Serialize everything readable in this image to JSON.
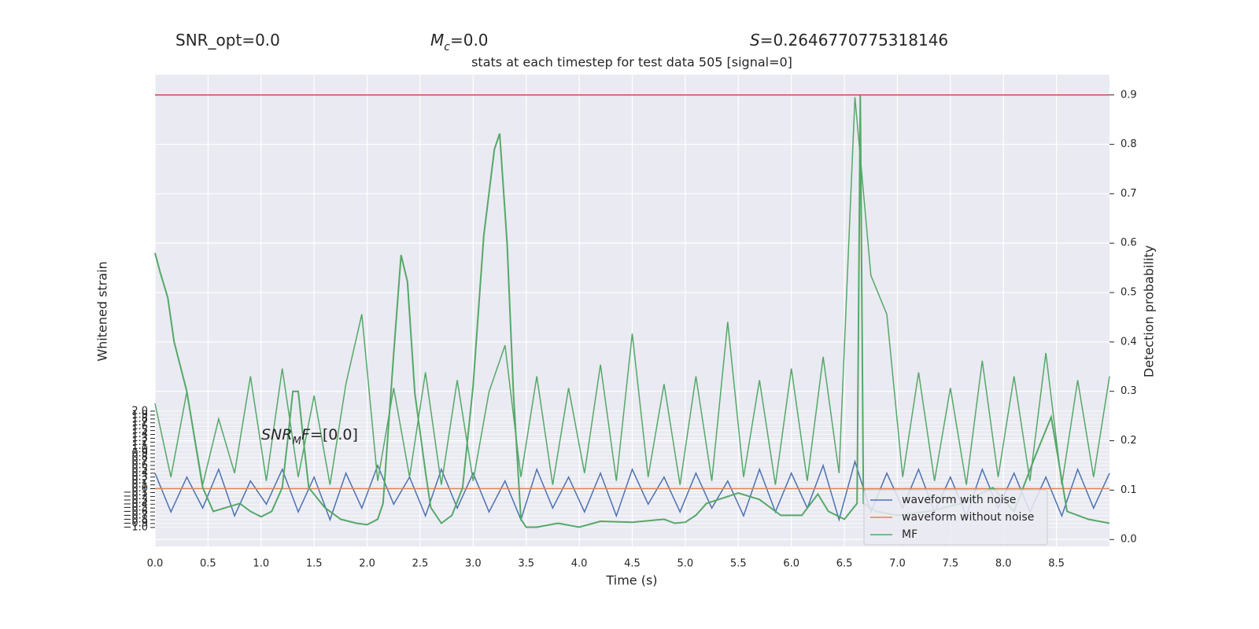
{
  "chart_data": {
    "type": "line",
    "title": "stats at each timestep for test data 505 [signal=0]",
    "annotations": [
      {
        "parts": [
          {
            "text": "SNR_opt=0.0"
          }
        ]
      },
      {
        "parts": [
          {
            "text": "M",
            "italic": true
          },
          {
            "text": "c",
            "italic": true,
            "sub": true
          },
          {
            "text": "=0.0"
          }
        ]
      },
      {
        "parts": [
          {
            "text": "S",
            "italic": true
          },
          {
            "text": "=0.2646770775318146"
          }
        ]
      },
      {
        "parts": [
          {
            "text": "SNR",
            "italic": true
          },
          {
            "text": "M",
            "italic": true,
            "sub": true
          },
          {
            "text": "F",
            "italic": true
          },
          {
            "text": "=[0.0]"
          }
        ]
      }
    ],
    "xlabel": "Time (s)",
    "ylabel": "Whitened strain",
    "y2label": "Detection probability",
    "xlim": [
      0,
      9
    ],
    "ylim": [
      -1.49,
      10.68
    ],
    "y2lim": [
      -0.014,
      0.941
    ],
    "grid": true,
    "legend": "lower right",
    "xticks": [
      {
        "value": 0,
        "label": "0.0"
      },
      {
        "value": 0.5,
        "label": "0.5"
      },
      {
        "value": 1,
        "label": "1.0"
      },
      {
        "value": 1.5,
        "label": "1.5"
      },
      {
        "value": 2,
        "label": "2.0"
      },
      {
        "value": 2.5,
        "label": "2.5"
      },
      {
        "value": 3,
        "label": "3.0"
      },
      {
        "value": 3.5,
        "label": "3.5"
      },
      {
        "value": 4,
        "label": "4.0"
      },
      {
        "value": 4.5,
        "label": "4.5"
      },
      {
        "value": 5,
        "label": "5.0"
      },
      {
        "value": 5.5,
        "label": "5.5"
      },
      {
        "value": 6,
        "label": "6.0"
      },
      {
        "value": 6.5,
        "label": "6.5"
      },
      {
        "value": 7,
        "label": "7.0"
      },
      {
        "value": 7.5,
        "label": "7.5"
      },
      {
        "value": 8,
        "label": "8.0"
      },
      {
        "value": 8.5,
        "label": "8.5"
      }
    ],
    "yticks": [
      {
        "value": -1,
        "label": "−1.0"
      },
      {
        "value": -0.9,
        "label": "−0.9"
      },
      {
        "value": -0.8,
        "label": "−0.8"
      },
      {
        "value": -0.7,
        "label": "−0.7"
      },
      {
        "value": -0.6,
        "label": "−0.6"
      },
      {
        "value": -0.5,
        "label": "−0.5"
      },
      {
        "value": -0.4,
        "label": "−0.4"
      },
      {
        "value": -0.3,
        "label": "−0.3"
      },
      {
        "value": -0.2,
        "label": "−0.2"
      },
      {
        "value": -0.1,
        "label": "−0.1"
      },
      {
        "value": 0,
        "label": "0.0"
      },
      {
        "value": 0.1,
        "label": "0.1"
      },
      {
        "value": 0.2,
        "label": "0.2"
      },
      {
        "value": 0.3,
        "label": "0.3"
      },
      {
        "value": 0.4,
        "label": "0.4"
      },
      {
        "value": 0.5,
        "label": "0.5"
      },
      {
        "value": 0.6,
        "label": "0.6"
      },
      {
        "value": 0.7,
        "label": "0.7"
      },
      {
        "value": 0.8,
        "label": "0.8"
      },
      {
        "value": 0.9,
        "label": "0.9"
      },
      {
        "value": 1,
        "label": "1.0"
      },
      {
        "value": 1.1,
        "label": "1.1"
      },
      {
        "value": 1.2,
        "label": "1.2"
      },
      {
        "value": 1.3,
        "label": "1.3"
      },
      {
        "value": 1.4,
        "label": "1.4"
      },
      {
        "value": 1.5,
        "label": "1.5"
      },
      {
        "value": 1.6,
        "label": "1.6"
      },
      {
        "value": 1.7,
        "label": "1.7"
      },
      {
        "value": 1.8,
        "label": "1.8"
      },
      {
        "value": 1.9,
        "label": "1.9"
      },
      {
        "value": 2,
        "label": "2.0"
      }
    ],
    "y2ticks": [
      {
        "value": 0,
        "label": "0.0"
      },
      {
        "value": 0.1,
        "label": "0.1"
      },
      {
        "value": 0.2,
        "label": "0.2"
      },
      {
        "value": 0.3,
        "label": "0.3"
      },
      {
        "value": 0.4,
        "label": "0.4"
      },
      {
        "value": 0.5,
        "label": "0.5"
      },
      {
        "value": 0.6,
        "label": "0.6"
      },
      {
        "value": 0.7,
        "label": "0.7"
      },
      {
        "value": 0.8,
        "label": "0.8"
      },
      {
        "value": 0.9,
        "label": "0.9"
      }
    ],
    "x": [
      0,
      0.15,
      0.3,
      0.45,
      0.6,
      0.75,
      0.9,
      1.05,
      1.2,
      1.35,
      1.5,
      1.65,
      1.8,
      1.95,
      2.1,
      2.25,
      2.4,
      2.55,
      2.7,
      2.85,
      3,
      3.15,
      3.3,
      3.45,
      3.6,
      3.75,
      3.9,
      4.05,
      4.2,
      4.35,
      4.5,
      4.65,
      4.8,
      4.95,
      5.1,
      5.25,
      5.4,
      5.55,
      5.7,
      5.85,
      6,
      6.15,
      6.3,
      6.45,
      6.6,
      6.75,
      6.9,
      7.05,
      7.2,
      7.35,
      7.5,
      7.65,
      7.8,
      7.95,
      8.1,
      8.25,
      8.4,
      8.55,
      8.7,
      8.85,
      9
    ],
    "series": [
      {
        "name": "waveform with noise",
        "color": "#4c72b0",
        "axis": "y",
        "values": [
          0.4,
          -0.6,
          0.3,
          -0.5,
          0.5,
          -0.7,
          0.2,
          -0.4,
          0.5,
          -0.6,
          0.3,
          -0.8,
          0.4,
          -0.5,
          0.6,
          -0.4,
          0.3,
          -0.7,
          0.5,
          -0.5,
          0.4,
          -0.6,
          0.2,
          -0.8,
          0.5,
          -0.5,
          0.3,
          -0.6,
          0.4,
          -0.7,
          0.5,
          -0.4,
          0.3,
          -0.6,
          0.4,
          -0.5,
          0.2,
          -0.7,
          0.5,
          -0.6,
          0.4,
          -0.5,
          0.6,
          -0.8,
          0.7,
          -0.6,
          0.4,
          -0.5,
          0.5,
          -0.6,
          0.3,
          -0.7,
          0.5,
          -0.5,
          0.4,
          -0.6,
          0.3,
          -0.7,
          0.5,
          -0.5,
          0.4
        ]
      },
      {
        "name": "waveform without noise",
        "color": "#dd8452",
        "axis": "y",
        "values": [
          0,
          0,
          0,
          0,
          0,
          0,
          0,
          0,
          0,
          0,
          0,
          0,
          0,
          0,
          0,
          0,
          0,
          0,
          0,
          0,
          0,
          0,
          0,
          0,
          0,
          0,
          0,
          0,
          0,
          0,
          0,
          0,
          0,
          0,
          0,
          0,
          0,
          0,
          0,
          0,
          0,
          0,
          0,
          0,
          0,
          0,
          0,
          0,
          0,
          0,
          0,
          0,
          0,
          0,
          0,
          0,
          0,
          0,
          0,
          0,
          0
        ]
      },
      {
        "name": "MF",
        "color": "#55a868",
        "axis": "y",
        "values": [
          2.2,
          0.3,
          2.5,
          0.1,
          1.8,
          0.4,
          2.9,
          0.2,
          3.1,
          0.3,
          2.4,
          0.1,
          2.7,
          4.5,
          0.2,
          2.6,
          0.3,
          3.0,
          0.1,
          2.8,
          0.2,
          2.5,
          3.7,
          0.3,
          2.9,
          0.1,
          2.6,
          0.4,
          3.2,
          0.2,
          4.0,
          0.3,
          2.7,
          0.1,
          2.9,
          0.2,
          4.3,
          0.3,
          2.8,
          0.1,
          3.1,
          0.2,
          3.4,
          0.4,
          10.1,
          5.5,
          4.5,
          0.3,
          3.0,
          0.2,
          2.6,
          0.1,
          3.3,
          0.3,
          2.9,
          0.2,
          3.5,
          0.1,
          2.8,
          0.3,
          2.9
        ]
      }
    ],
    "probability": {
      "color": "#55a868",
      "axis": "y2",
      "x": [
        0,
        0.05,
        0.12,
        0.18,
        0.3,
        0.45,
        0.55,
        0.8,
        0.9,
        1.0,
        1.1,
        1.2,
        1.25,
        1.3,
        1.35,
        1.4,
        1.45,
        1.6,
        1.75,
        1.9,
        2.0,
        2.1,
        2.15,
        2.25,
        2.32,
        2.38,
        2.45,
        2.55,
        2.6,
        2.7,
        2.8,
        2.9,
        3.0,
        3.1,
        3.2,
        3.25,
        3.32,
        3.38,
        3.45,
        3.5,
        3.6,
        3.8,
        4.0,
        4.2,
        4.5,
        4.8,
        4.9,
        5.0,
        5.1,
        5.2,
        5.5,
        5.7,
        5.9,
        6.1,
        6.25,
        6.35,
        6.5,
        6.62,
        6.65,
        6.68,
        6.8,
        7.0,
        7.3,
        7.6,
        7.9,
        8.1,
        8.3,
        8.45,
        8.6,
        8.8,
        9.0
      ],
      "values": [
        0.58,
        0.54,
        0.49,
        0.4,
        0.3,
        0.105,
        0.057,
        0.073,
        0.057,
        0.046,
        0.057,
        0.105,
        0.2,
        0.3,
        0.3,
        0.2,
        0.105,
        0.065,
        0.041,
        0.033,
        0.03,
        0.041,
        0.073,
        0.376,
        0.576,
        0.522,
        0.296,
        0.137,
        0.065,
        0.033,
        0.049,
        0.105,
        0.312,
        0.615,
        0.79,
        0.822,
        0.599,
        0.296,
        0.041,
        0.025,
        0.025,
        0.033,
        0.025,
        0.037,
        0.035,
        0.041,
        0.033,
        0.035,
        0.049,
        0.073,
        0.094,
        0.081,
        0.049,
        0.049,
        0.092,
        0.057,
        0.041,
        0.073,
        0.9,
        0.073,
        0.057,
        0.049,
        0.057,
        0.073,
        0.105,
        0.057,
        0.169,
        0.248,
        0.057,
        0.041,
        0.033
      ]
    },
    "threshold": {
      "value": 0.9,
      "color": "#c44e52",
      "axis": "y2"
    }
  }
}
